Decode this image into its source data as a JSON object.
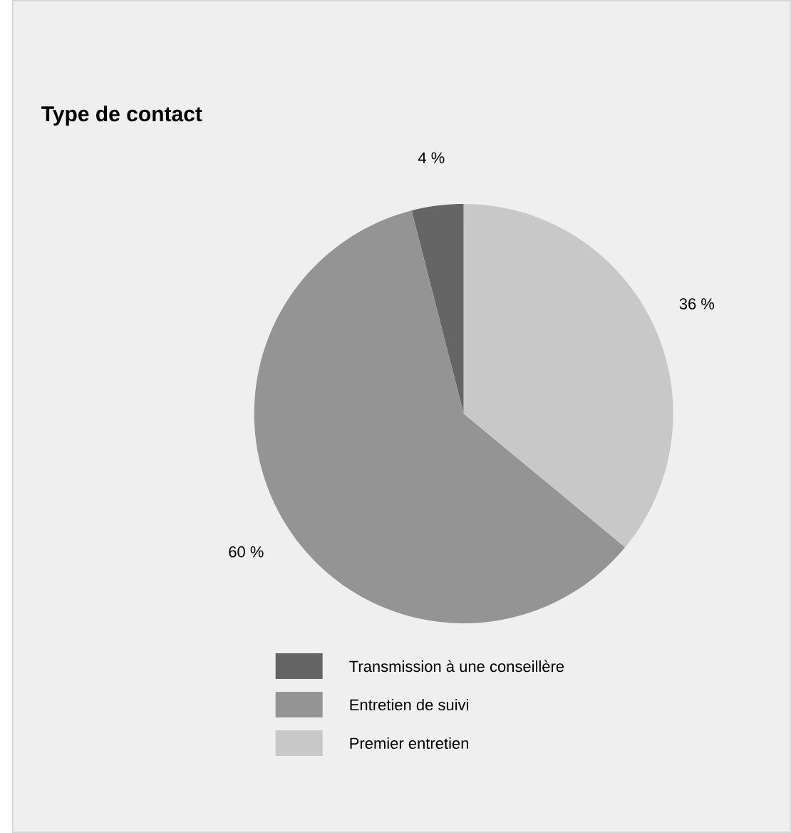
{
  "chart_data": {
    "type": "pie",
    "title": "Type de contact",
    "categories": [
      "Transmission à une conseillère",
      "Entretien de suivi",
      "Premier entretien"
    ],
    "values": [
      4,
      60,
      36
    ],
    "value_labels": [
      "4 %",
      "60 %",
      "36 %"
    ],
    "colors": [
      "#656565",
      "#949494",
      "#c8c8c8"
    ],
    "legend": "bottom"
  }
}
